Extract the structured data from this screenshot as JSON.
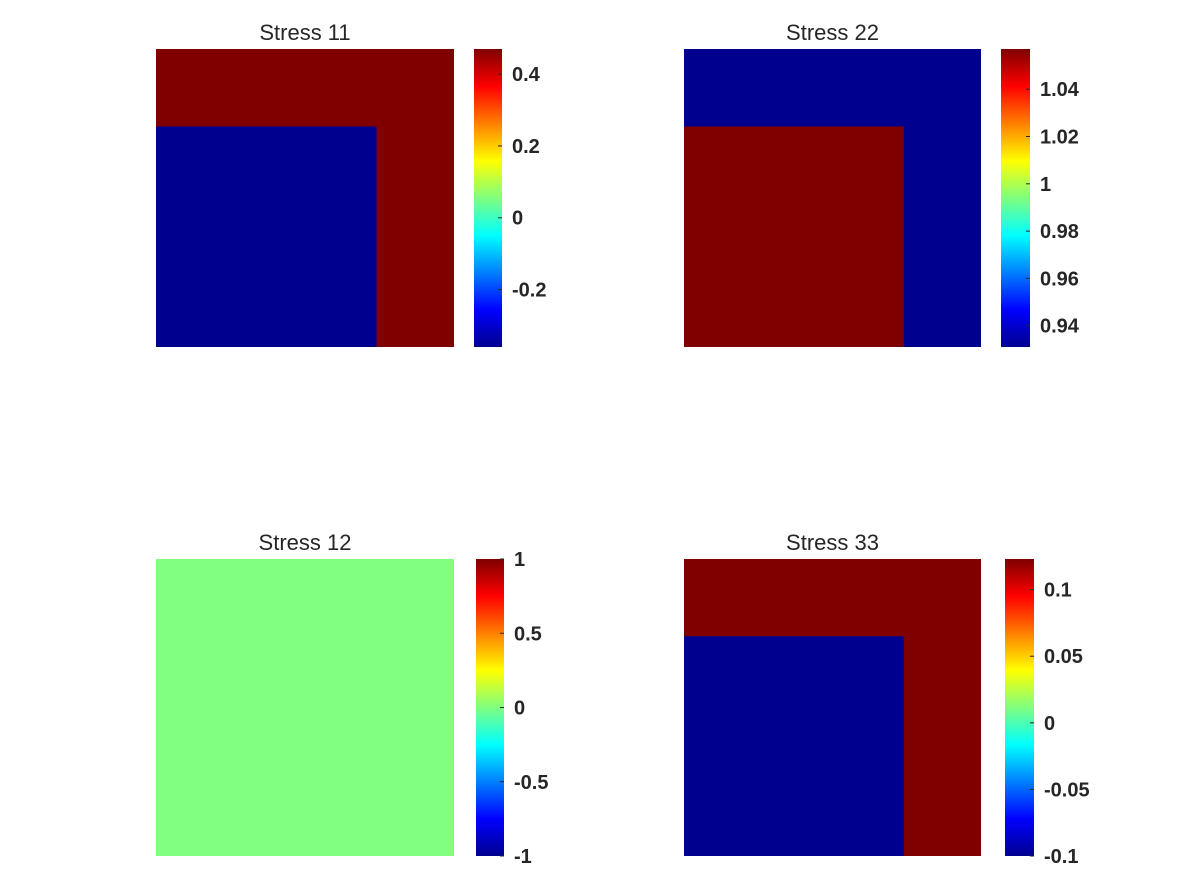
{
  "colors": {
    "jet_low": "#00008f",
    "jet_high": "#800000",
    "jet_mid_green": "#80ff80",
    "jet_stops": [
      "#00008f",
      "#0000ff",
      "#00ffff",
      "#ffff00",
      "#ff0000",
      "#800000"
    ]
  },
  "chart_data": [
    {
      "type": "heatmap",
      "title": "Stress 11",
      "clim": [
        -0.36,
        0.47
      ],
      "colorbar_ticks": [
        0.4,
        0.2,
        0,
        -0.2
      ],
      "colorbar_tick_labels": [
        "0.4",
        "0.2",
        "0",
        "-0.2"
      ],
      "background_value": 0.47,
      "inclusion_value": -0.36,
      "inclusion_extent": {
        "x": [
          0,
          0.74
        ],
        "y": [
          0,
          0.74
        ]
      }
    },
    {
      "type": "heatmap",
      "title": "Stress 22",
      "clim": [
        0.931,
        1.057
      ],
      "colorbar_ticks": [
        1.04,
        1.02,
        1,
        0.98,
        0.96,
        0.94
      ],
      "colorbar_tick_labels": [
        "1.04",
        "1.02",
        "1",
        "0.98",
        "0.96",
        "0.94"
      ],
      "background_value": 0.931,
      "inclusion_value": 1.057,
      "inclusion_extent": {
        "x": [
          0,
          0.74
        ],
        "y": [
          0,
          0.74
        ]
      }
    },
    {
      "type": "heatmap",
      "title": "Stress 12",
      "clim": [
        -1,
        1
      ],
      "colorbar_ticks": [
        1,
        0.5,
        0,
        -0.5,
        -1
      ],
      "colorbar_tick_labels": [
        "1",
        "0.5",
        "0",
        "-0.5",
        "-1"
      ],
      "background_value": 0,
      "inclusion_value": 0,
      "inclusion_extent": {
        "x": [
          0,
          0.74
        ],
        "y": [
          0,
          0.74
        ]
      }
    },
    {
      "type": "heatmap",
      "title": "Stress 33",
      "clim": [
        -0.1,
        0.123
      ],
      "colorbar_ticks": [
        0.1,
        0.05,
        0,
        -0.05,
        -0.1
      ],
      "colorbar_tick_labels": [
        "0.1",
        "0.05",
        "0",
        "-0.05",
        "-0.1"
      ],
      "background_value": 0.123,
      "inclusion_value": -0.1,
      "inclusion_extent": {
        "x": [
          0,
          0.74
        ],
        "y": [
          0,
          0.74
        ]
      }
    }
  ]
}
